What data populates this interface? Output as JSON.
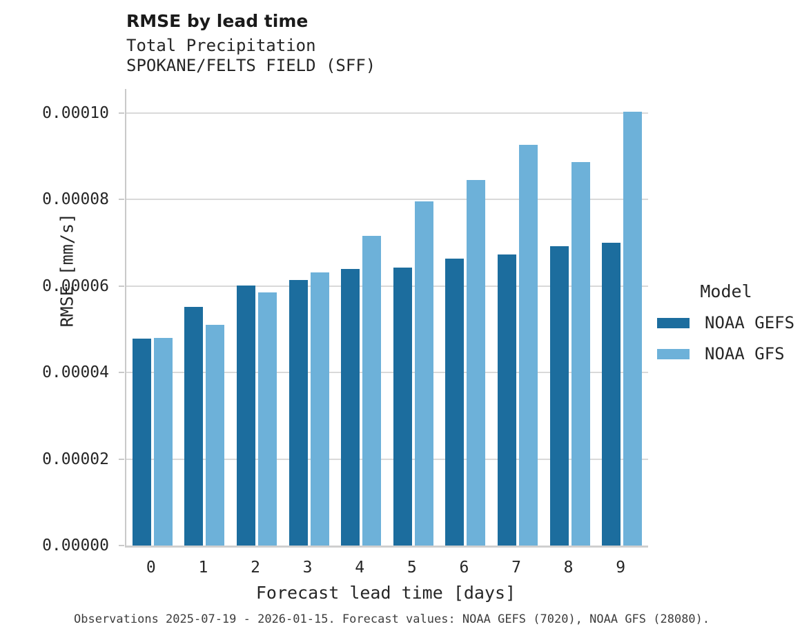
{
  "header": {
    "title": "RMSE by lead time",
    "subtitle_variable": "Total Precipitation",
    "subtitle_station": "SPOKANE/FELTS FIELD (SFF)"
  },
  "caption": "Observations 2025-07-19 - 2026-01-15. Forecast values: NOAA GEFS (7020), NOAA GFS (28080).",
  "chart_data": {
    "type": "bar",
    "title": "RMSE by lead time",
    "subtitle": [
      "Total Precipitation",
      "SPOKANE/FELTS FIELD (SFF)"
    ],
    "xlabel": "Forecast lead time [days]",
    "ylabel": "RMSE [mm/s]",
    "categories": [
      "0",
      "1",
      "2",
      "3",
      "4",
      "5",
      "6",
      "7",
      "8",
      "9"
    ],
    "series": [
      {
        "name": "NOAA GEFS",
        "color": "#1c6d9e",
        "values": [
          4.79e-05,
          5.52e-05,
          6.01e-05,
          6.15e-05,
          6.39e-05,
          6.43e-05,
          6.63e-05,
          6.74e-05,
          6.92e-05,
          7.01e-05
        ]
      },
      {
        "name": "NOAA GFS",
        "color": "#6db1d9",
        "values": [
          4.81e-05,
          5.11e-05,
          5.86e-05,
          6.31e-05,
          7.17e-05,
          7.96e-05,
          8.45e-05,
          9.27e-05,
          8.87e-05,
          0.0001003
        ]
      }
    ],
    "ylim": [
      0,
      0.0001056
    ],
    "yticks": [
      {
        "value": 0.0,
        "label": "0.00000"
      },
      {
        "value": 2e-05,
        "label": "0.00002"
      },
      {
        "value": 4e-05,
        "label": "0.00004"
      },
      {
        "value": 6e-05,
        "label": "0.00006"
      },
      {
        "value": 8e-05,
        "label": "0.00008"
      },
      {
        "value": 0.0001,
        "label": "0.00010"
      }
    ],
    "grid": "horizontal",
    "legend_title": "Model",
    "legend_position": "right",
    "colors": {
      "gridline": "#d9d9d9",
      "spine": "#c9c9c9",
      "text": "#262626",
      "caption_text": "#3d3d3d"
    }
  }
}
